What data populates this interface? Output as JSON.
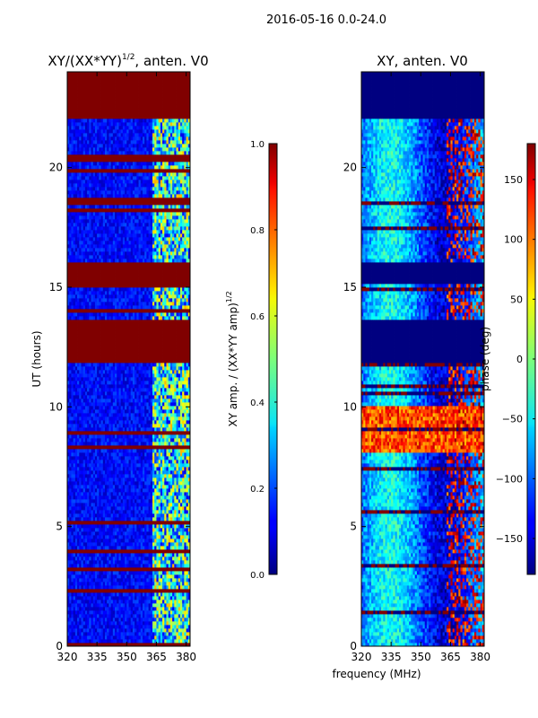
{
  "figure": {
    "suptitle": "2016-05-16 0.0-24.0"
  },
  "chart_data": [
    {
      "type": "heatmap",
      "title": "XY/(XX*YY)",
      "title_exponent": "1/2",
      "title_suffix": ", anten. V0",
      "xlabel": "",
      "ylabel": "UT (hours)",
      "xlim": [
        320,
        382
      ],
      "ylim": [
        0,
        24
      ],
      "xticks": [
        320,
        335,
        350,
        365,
        380
      ],
      "yticks": [
        0,
        5,
        10,
        15,
        20
      ],
      "colormap": "jet",
      "masked_value": 1.0,
      "masked_bands_hours": [
        [
          11.8,
          13.6
        ],
        [
          15.1,
          16.1
        ],
        [
          20.2,
          20.5
        ],
        [
          22.1,
          24.0
        ]
      ],
      "noisy_band_mhz": [
        363,
        382
      ],
      "colorbar": {
        "label": "XY amp. / (XX*YY amp)",
        "label_exponent": "1/2",
        "range": [
          0.0,
          1.0
        ],
        "ticks": [
          "0.0",
          "0.2",
          "0.4",
          "0.6",
          "0.8",
          "1.0"
        ],
        "tick_values": [
          0.0,
          0.2,
          0.4,
          0.6,
          0.8,
          1.0
        ]
      }
    },
    {
      "type": "heatmap",
      "title": "XY, anten. V0",
      "xlabel": "frequency (MHz)",
      "ylabel": "",
      "xlim": [
        320,
        382
      ],
      "ylim": [
        0,
        24
      ],
      "xticks": [
        320,
        335,
        350,
        365,
        380
      ],
      "yticks": [
        0,
        5,
        10,
        15,
        20
      ],
      "colormap": "jet",
      "masked_value": -180,
      "masked_bands_hours": [
        [
          11.8,
          13.6
        ],
        [
          15.1,
          16.1
        ],
        [
          22.1,
          24.0
        ]
      ],
      "colorbar": {
        "label": "phase (deg)",
        "range": [
          -180,
          180
        ],
        "ticks": [
          "150",
          "100",
          "50",
          "0",
          "−50",
          "−100",
          "−150"
        ],
        "tick_values": [
          150,
          100,
          50,
          0,
          -50,
          -100,
          -150
        ]
      }
    }
  ]
}
